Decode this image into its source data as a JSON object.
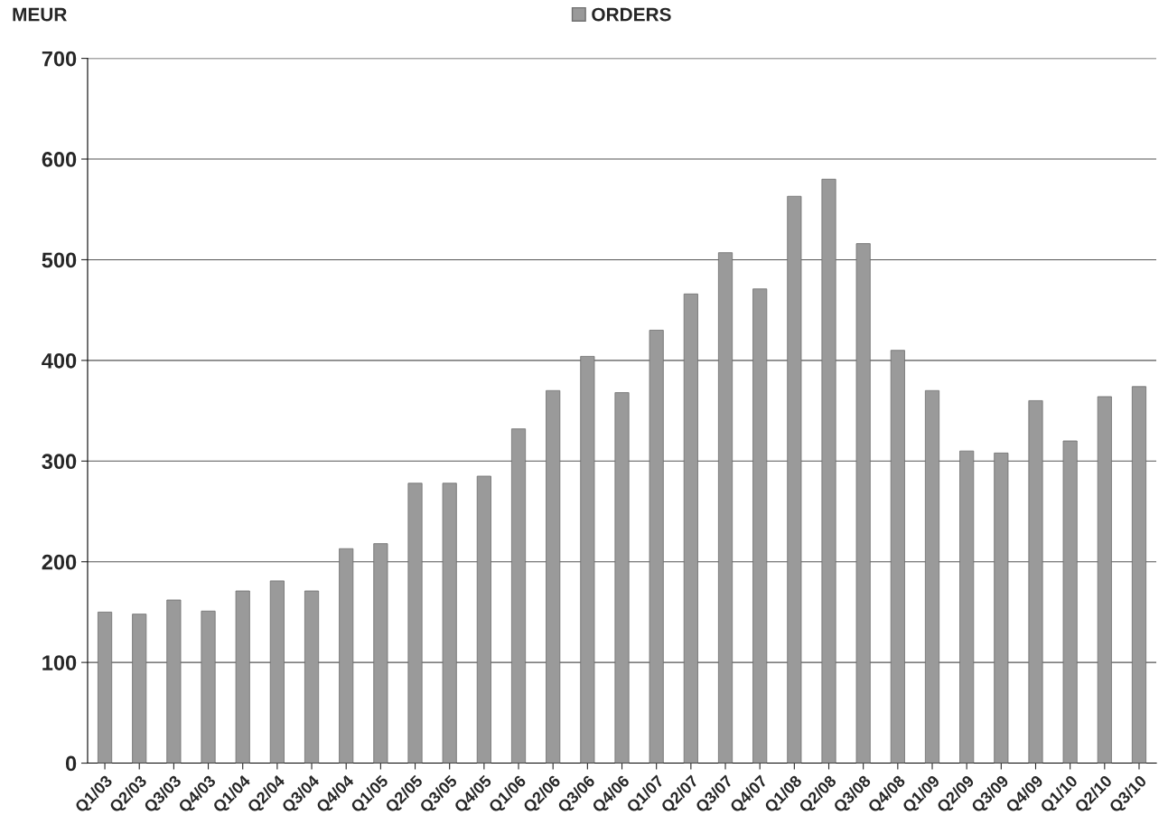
{
  "chart_data": {
    "type": "bar",
    "ylabel": "MEUR",
    "categories": [
      "Q1/03",
      "Q2/03",
      "Q3/03",
      "Q4/03",
      "Q1/04",
      "Q2/04",
      "Q3/04",
      "Q4/04",
      "Q1/05",
      "Q2/05",
      "Q3/05",
      "Q4/05",
      "Q1/06",
      "Q2/06",
      "Q3/06",
      "Q4/06",
      "Q1/07",
      "Q2/07",
      "Q3/07",
      "Q4/07",
      "Q1/08",
      "Q2/08",
      "Q3/08",
      "Q4/08",
      "Q1/09",
      "Q2/09",
      "Q3/09",
      "Q4/09",
      "Q1/10",
      "Q2/10",
      "Q3/10"
    ],
    "series": [
      {
        "name": "ORDERS",
        "color": "#9a9a9a",
        "values": [
          150,
          148,
          162,
          151,
          171,
          181,
          171,
          213,
          218,
          278,
          278,
          285,
          332,
          370,
          404,
          368,
          430,
          466,
          507,
          471,
          563,
          580,
          516,
          410,
          370,
          310,
          308,
          360,
          320,
          364,
          374
        ]
      }
    ],
    "ylim": [
      0,
      700
    ],
    "yticks": [
      0,
      100,
      200,
      300,
      400,
      500,
      600,
      700
    ],
    "grid": "y",
    "legend": "top"
  }
}
